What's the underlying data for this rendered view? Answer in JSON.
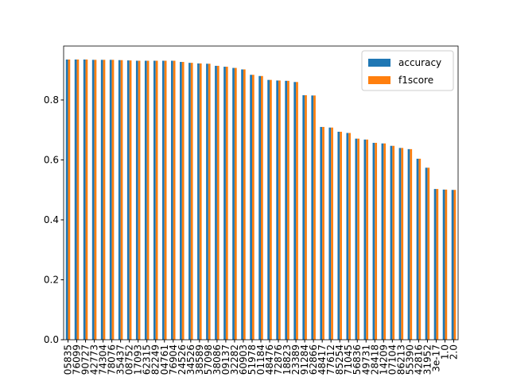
{
  "chart_data": {
    "type": "bar",
    "categories": [
      "05835",
      "76099",
      "90727",
      "42773",
      "74304",
      "78076",
      "35437",
      "08752",
      "17093",
      "62315",
      "82249",
      "04761",
      "76904",
      "24526",
      "34526",
      "38589",
      "57098",
      "38086",
      "09137",
      "32282",
      "60903",
      "51978",
      "01184",
      "48476",
      "72876",
      "18823",
      "23389",
      "91284",
      "62866",
      "48417",
      "77612",
      "85254",
      "71045",
      "56836",
      "49731",
      "28418",
      "14209",
      "07104",
      "86213",
      "55390",
      "42816",
      "31952",
      "3e-17",
      "1.0",
      "2.0"
    ],
    "series": [
      {
        "name": "accuracy",
        "color": "#1f77b4",
        "values": [
          0.935,
          0.935,
          0.935,
          0.934,
          0.934,
          0.934,
          0.933,
          0.932,
          0.931,
          0.931,
          0.931,
          0.931,
          0.931,
          0.927,
          0.924,
          0.922,
          0.921,
          0.914,
          0.911,
          0.907,
          0.902,
          0.884,
          0.88,
          0.867,
          0.865,
          0.864,
          0.86,
          0.816,
          0.815,
          0.71,
          0.708,
          0.694,
          0.69,
          0.671,
          0.668,
          0.657,
          0.655,
          0.647,
          0.64,
          0.636,
          0.604,
          0.574,
          0.503,
          0.501,
          0.5
        ]
      },
      {
        "name": "f1score",
        "color": "#ff7f0e",
        "values": [
          0.935,
          0.935,
          0.935,
          0.934,
          0.934,
          0.934,
          0.933,
          0.932,
          0.931,
          0.931,
          0.931,
          0.931,
          0.931,
          0.927,
          0.924,
          0.922,
          0.921,
          0.914,
          0.911,
          0.907,
          0.902,
          0.884,
          0.88,
          0.867,
          0.865,
          0.864,
          0.86,
          0.816,
          0.815,
          0.71,
          0.708,
          0.694,
          0.69,
          0.671,
          0.668,
          0.657,
          0.655,
          0.647,
          0.64,
          0.636,
          0.604,
          0.574,
          0.503,
          0.501,
          0.5
        ]
      }
    ],
    "ylim": [
      0,
      0.98
    ],
    "yticks": [
      {
        "value": 0,
        "label": "0.0"
      },
      0.2,
      0.4,
      0.6,
      0.8
    ],
    "legend": "upper right"
  }
}
